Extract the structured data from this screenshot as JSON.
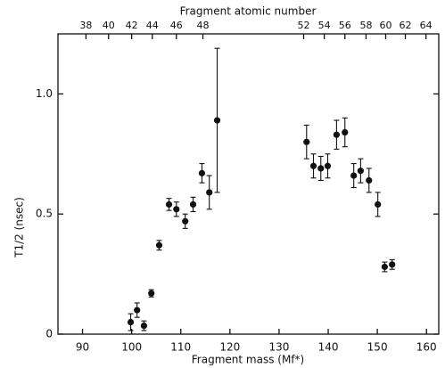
{
  "chart_data": {
    "type": "scatter",
    "title": "Fragment atomic number",
    "xlabel": "Fragment mass (Mf*)",
    "ylabel": "T1/2 (nsec)",
    "x": [
      99.8,
      101.1,
      102.5,
      104.0,
      105.6,
      107.6,
      109.1,
      110.9,
      112.5,
      114.3,
      115.8,
      117.4,
      135.6,
      137.0,
      138.5,
      139.9,
      141.7,
      143.4,
      145.2,
      146.6,
      148.3,
      150.1,
      151.5,
      153.0
    ],
    "series": [
      {
        "color": "#111111",
        "values": [
          0.05,
          0.1,
          0.035,
          0.17,
          0.37,
          0.54,
          0.52,
          0.47,
          0.54,
          0.67,
          0.59,
          0.89,
          0.8,
          0.7,
          0.69,
          0.7,
          0.83,
          0.84,
          0.66,
          0.68,
          0.64,
          0.54,
          0.28,
          0.29
        ],
        "errors": [
          0.035,
          0.03,
          0.02,
          0.015,
          0.02,
          0.025,
          0.03,
          0.03,
          0.03,
          0.04,
          0.07,
          0.3,
          0.07,
          0.05,
          0.05,
          0.05,
          0.06,
          0.06,
          0.05,
          0.05,
          0.05,
          0.05,
          0.02,
          0.02
        ]
      }
    ],
    "xlim": [
      85,
      162.5
    ],
    "ylim": [
      0,
      1.25
    ],
    "xticks": [
      90,
      100,
      110,
      120,
      130,
      140,
      150,
      160
    ],
    "yticks": [
      0,
      0.5,
      {
        "value": 1,
        "label": "1.0"
      }
    ],
    "x2ticks": [
      {
        "value": 90.7,
        "label": "38"
      },
      {
        "value": 95.3,
        "label": "40"
      },
      {
        "value": 100.0,
        "label": "42"
      },
      {
        "value": 104.2,
        "label": "44"
      },
      {
        "value": 109.1,
        "label": "46"
      },
      {
        "value": 114.5,
        "label": "48"
      },
      {
        "value": 135.0,
        "label": "52"
      },
      {
        "value": 139.2,
        "label": "54"
      },
      {
        "value": 143.4,
        "label": "56"
      },
      {
        "value": 147.7,
        "label": "58"
      },
      {
        "value": 151.7,
        "label": "60"
      },
      {
        "value": 155.7,
        "label": "62"
      },
      {
        "value": 159.9,
        "label": "64"
      }
    ]
  }
}
